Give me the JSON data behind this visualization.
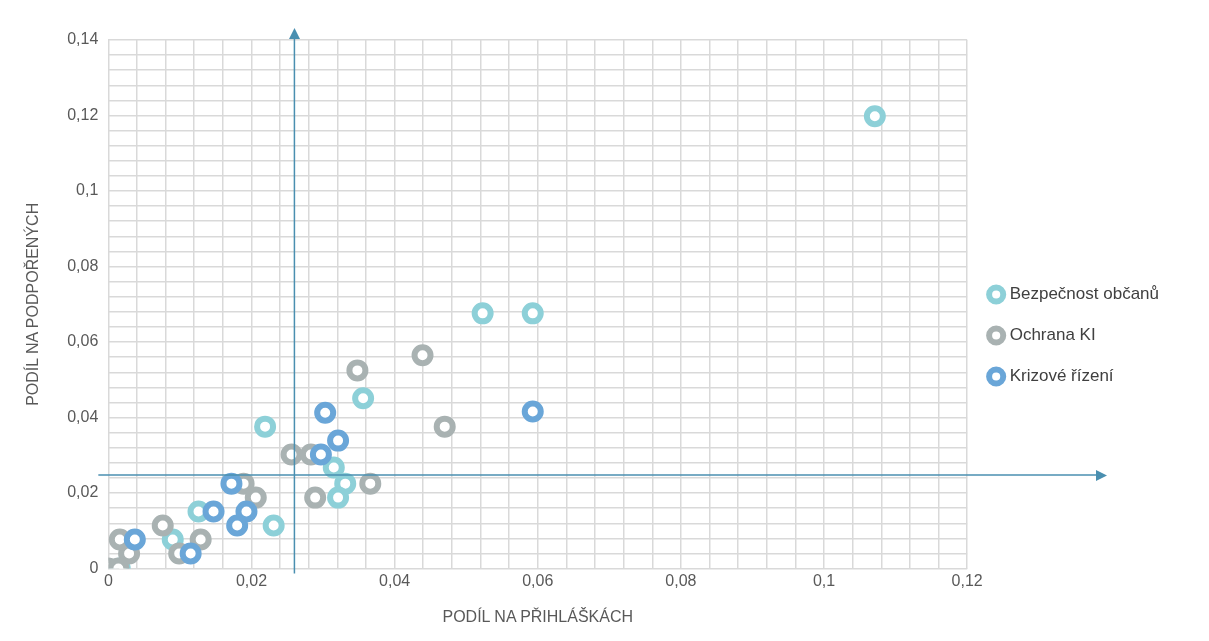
{
  "chart_data": {
    "type": "scatter",
    "xlabel": "PODÍL NA PŘIHLÁŠKÁCH",
    "ylabel": "PODÍL NA PODPOŘENÝCH",
    "legend": "right",
    "grid": true,
    "marker": "circle",
    "xlim": [
      0,
      0.12
    ],
    "ylim": [
      0,
      0.14
    ],
    "xticks": [
      {
        "value": 0,
        "label": "0"
      },
      {
        "value": 0.004,
        "label": null
      },
      {
        "value": 0.008,
        "label": null
      },
      {
        "value": 0.012,
        "label": null
      },
      {
        "value": 0.016,
        "label": null
      },
      {
        "value": 0.02,
        "label": "0,02"
      },
      {
        "value": 0.024,
        "label": null
      },
      {
        "value": 0.028,
        "label": null
      },
      {
        "value": 0.032,
        "label": null
      },
      {
        "value": 0.036,
        "label": null
      },
      {
        "value": 0.04,
        "label": "0,04"
      },
      {
        "value": 0.044,
        "label": null
      },
      {
        "value": 0.048,
        "label": null
      },
      {
        "value": 0.052,
        "label": null
      },
      {
        "value": 0.056,
        "label": null
      },
      {
        "value": 0.06,
        "label": "0,06"
      },
      {
        "value": 0.064,
        "label": null
      },
      {
        "value": 0.068,
        "label": null
      },
      {
        "value": 0.072,
        "label": null
      },
      {
        "value": 0.076,
        "label": null
      },
      {
        "value": 0.08,
        "label": "0,08"
      },
      {
        "value": 0.084,
        "label": null
      },
      {
        "value": 0.088,
        "label": null
      },
      {
        "value": 0.092,
        "label": null
      },
      {
        "value": 0.096,
        "label": null
      },
      {
        "value": 0.1,
        "label": "0,1"
      },
      {
        "value": 0.104,
        "label": null
      },
      {
        "value": 0.108,
        "label": null
      },
      {
        "value": 0.112,
        "label": null
      },
      {
        "value": 0.116,
        "label": null
      },
      {
        "value": 0.12,
        "label": "0,12"
      }
    ],
    "yticks": [
      {
        "value": 0,
        "label": "0"
      },
      {
        "value": 0.004,
        "label": null
      },
      {
        "value": 0.008,
        "label": null
      },
      {
        "value": 0.012,
        "label": null
      },
      {
        "value": 0.016,
        "label": null
      },
      {
        "value": 0.02,
        "label": "0,02"
      },
      {
        "value": 0.024,
        "label": null
      },
      {
        "value": 0.028,
        "label": null
      },
      {
        "value": 0.032,
        "label": null
      },
      {
        "value": 0.036,
        "label": null
      },
      {
        "value": 0.04,
        "label": "0,04"
      },
      {
        "value": 0.044,
        "label": null
      },
      {
        "value": 0.048,
        "label": null
      },
      {
        "value": 0.052,
        "label": null
      },
      {
        "value": 0.056,
        "label": null
      },
      {
        "value": 0.06,
        "label": "0,06"
      },
      {
        "value": 0.064,
        "label": null
      },
      {
        "value": 0.068,
        "label": null
      },
      {
        "value": 0.072,
        "label": null
      },
      {
        "value": 0.076,
        "label": null
      },
      {
        "value": 0.08,
        "label": "0,08"
      },
      {
        "value": 0.084,
        "label": null
      },
      {
        "value": 0.088,
        "label": null
      },
      {
        "value": 0.092,
        "label": null
      },
      {
        "value": 0.096,
        "label": null
      },
      {
        "value": 0.1,
        "label": "0,1"
      },
      {
        "value": 0.104,
        "label": null
      },
      {
        "value": 0.108,
        "label": null
      },
      {
        "value": 0.112,
        "label": null
      },
      {
        "value": 0.116,
        "label": null
      },
      {
        "value": 0.12,
        "label": "0,12"
      },
      {
        "value": 0.124,
        "label": null
      },
      {
        "value": 0.128,
        "label": null
      },
      {
        "value": 0.132,
        "label": null
      },
      {
        "value": 0.136,
        "label": null
      },
      {
        "value": 0.14,
        "label": "0,14"
      }
    ],
    "ref_lines": [
      {
        "axis": "x",
        "value": 0.026,
        "label": null,
        "color": "#4a8fb0"
      },
      {
        "axis": "y",
        "value": 0.0248,
        "label": null,
        "color": "#4a8fb0"
      }
    ],
    "series": [
      {
        "name": "Bezpečnost občanů",
        "color": "#8dd0d8",
        "x": [
          0.1071,
          0.0523,
          0.0593,
          0.0356,
          0.0219,
          0.0315,
          0.0331,
          0.0321,
          0.0231,
          0.0126,
          0.009,
          0.0016
        ],
        "values": [
          0.1198,
          0.0676,
          0.0676,
          0.0451,
          0.0376,
          0.0268,
          0.0225,
          0.0188,
          0.0114,
          0.0151,
          0.0077,
          0
        ]
      },
      {
        "name": "Ochrana KI",
        "color": "#a9b2b2",
        "x": [
          0.0439,
          0.0348,
          0.047,
          0.0256,
          0.0283,
          0.0366,
          0.0289,
          0.0189,
          0.0206,
          0.0076,
          0.0129,
          0.0029,
          0.0016,
          0.0099,
          0,
          0.0014
        ],
        "values": [
          0.0565,
          0.0525,
          0.0376,
          0.0302,
          0.0302,
          0.0225,
          0.0188,
          0.0225,
          0.0188,
          0.0114,
          0.0077,
          0.004,
          0.0077,
          0.004,
          0,
          0
        ]
      },
      {
        "name": "Krizové řízení",
        "color": "#6aa6d8",
        "x": [
          0.0593,
          0.0303,
          0.0321,
          0.0297,
          0.0172,
          0.0193,
          0.0147,
          0.018,
          0.0037,
          0.0115
        ],
        "values": [
          0.0416,
          0.0413,
          0.0339,
          0.0302,
          0.0225,
          0.0151,
          0.0151,
          0.0114,
          0.0077,
          0.004
        ]
      }
    ]
  }
}
